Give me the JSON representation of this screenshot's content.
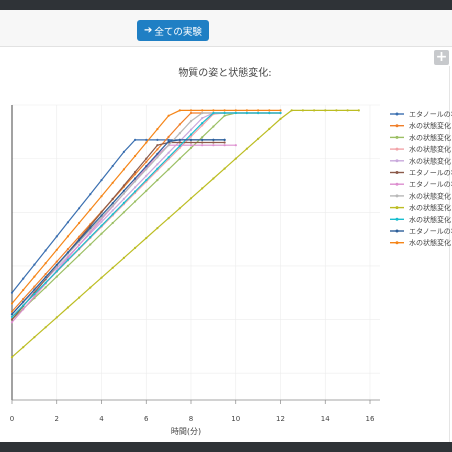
{
  "toolbar": {
    "all_experiments_label": "全ての実験",
    "expand_icon": "plus-icon"
  },
  "chart_data": {
    "type": "line",
    "title": "物質の姿と状態変化:",
    "xlabel": "時間(分)",
    "ylabel": "",
    "xlim": [
      -0.5,
      16.5
    ],
    "ylim": [
      -10,
      100
    ],
    "x_ticks": [
      0,
      2,
      4,
      6,
      8,
      10,
      12,
      14,
      16
    ],
    "grid": true,
    "legend_position": "right",
    "series": [
      {
        "name": "エタノールの状態変化",
        "color": "#3a6fb0",
        "end": 9.5,
        "boil": 87,
        "start": 30,
        "rate": 10.5
      },
      {
        "name": "水の状態変化",
        "color": "#f07f2a",
        "end": 12,
        "boil": 97,
        "start": 23,
        "rate": 9.3
      },
      {
        "name": "水の状態変化",
        "color": "#9bbf63",
        "end": 12,
        "boil": 97,
        "start": 20,
        "rate": 8.0
      },
      {
        "name": "水の状態変化",
        "color": "#f2a3a8",
        "end": 12,
        "boil": 97,
        "start": 21,
        "rate": 8.4
      },
      {
        "name": "水の状態変化",
        "color": "#c9a9dc",
        "end": 12,
        "boil": 97,
        "start": 22,
        "rate": 8.6
      },
      {
        "name": "エタノールの状態変化",
        "color": "#8b5a4a",
        "end": 9.5,
        "boil": 86,
        "start": 20,
        "rate": 10.0
      },
      {
        "name": "エタノールの状態変化",
        "color": "#dd8ecf",
        "end": 10,
        "boil": 85,
        "start": 19,
        "rate": 9.6
      },
      {
        "name": "水の状態変化",
        "color": "#b8b8b8",
        "end": 12,
        "boil": 97,
        "start": 22,
        "rate": 9.0
      },
      {
        "name": "水の状態変化",
        "color": "#bcbd22",
        "end": 15.5,
        "boil": 98,
        "start": 6,
        "rate": 7.4
      },
      {
        "name": "水の状態変化",
        "color": "#17becf",
        "end": 12,
        "boil": 97,
        "start": 21,
        "rate": 8.5
      },
      {
        "name": "エタノールの状態変化",
        "color": "#2d5f9a",
        "end": 9.5,
        "boil": 87,
        "start": 22,
        "rate": 9.2
      },
      {
        "name": "水の状態変化",
        "color": "#f58518",
        "end": 12,
        "boil": 98,
        "start": 26,
        "rate": 10.0
      }
    ]
  }
}
